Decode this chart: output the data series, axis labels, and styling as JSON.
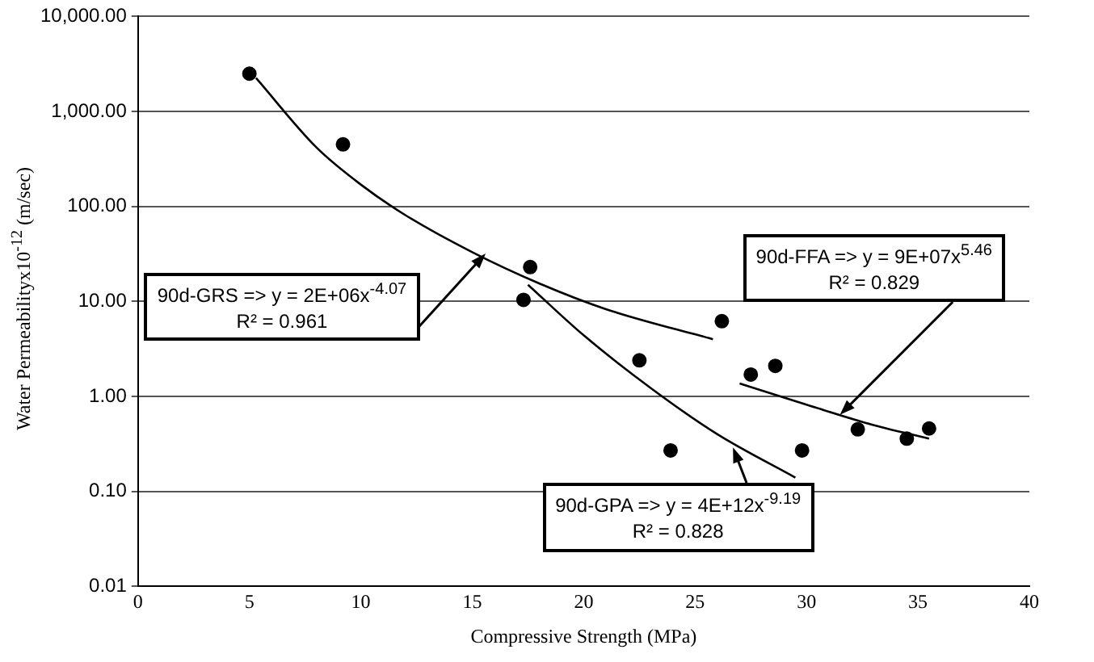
{
  "chart_data": {
    "type": "scatter",
    "xlabel": "Compressive Strength (MPa)",
    "ylabel": "Water Permeabilityx10$^{-12}$ (m/sec)",
    "log": "y",
    "grid": "y",
    "legend": false,
    "marker": "circle",
    "xlim": [
      0,
      40
    ],
    "xticks": [
      0,
      5,
      10,
      15,
      20,
      25,
      30,
      35,
      40
    ],
    "ylim": [
      0.01,
      10000
    ],
    "yticks": [
      {
        "value": 0.01,
        "label": "0.01"
      },
      {
        "value": 0.1,
        "label": "0.10"
      },
      {
        "value": 1,
        "label": "1.00"
      },
      {
        "value": 10,
        "label": "10.00"
      },
      {
        "value": 100,
        "label": "100.00"
      },
      {
        "value": 1000,
        "label": "1,000.00"
      },
      {
        "value": 10000,
        "label": "10,000.00"
      }
    ],
    "series": [
      {
        "color": "#000000",
        "x": [
          5.0,
          9.2,
          17.6,
          17.3,
          26.2,
          22.5,
          27.5,
          28.6,
          23.9,
          29.8,
          32.3,
          34.5,
          35.5
        ],
        "values": [
          2500,
          450,
          23,
          10.4,
          6.2,
          2.4,
          1.7,
          2.1,
          0.27,
          0.27,
          0.45,
          0.36,
          0.46
        ]
      },
      {
        "type": "line",
        "color": "#000000",
        "marker": "none",
        "x": [
          5.3,
          8,
          10,
          12,
          15,
          18,
          21,
          25.8
        ],
        "values": [
          2250,
          420,
          170,
          81,
          33,
          15.5,
          8.3,
          4
        ]
      },
      {
        "type": "line",
        "color": "#000000",
        "marker": "none",
        "x": [
          17.5,
          20,
          23,
          26,
          29.5
        ],
        "values": [
          15,
          4.4,
          1.23,
          0.4,
          0.14
        ]
      },
      {
        "type": "line",
        "color": "#000000",
        "marker": "none",
        "x": [
          27,
          30,
          33,
          35.5
        ],
        "values": [
          1.37,
          0.82,
          0.5,
          0.36
        ]
      }
    ],
    "annotations": [
      {
        "text": "90d-GRS => y = 2E+06x$^{-4.07}$",
        "x": 15.6,
        "y": 32
      },
      "R² = 0.961",
      {
        "text": "90d-GPA => y = 4E+12x$^{-9.19}$",
        "x": 26.7,
        "y": 0.29
      },
      "R² = 0.828",
      "90d-FFA => y = 9E+07x$^{5.46}$",
      "R² = 0.829"
    ]
  }
}
